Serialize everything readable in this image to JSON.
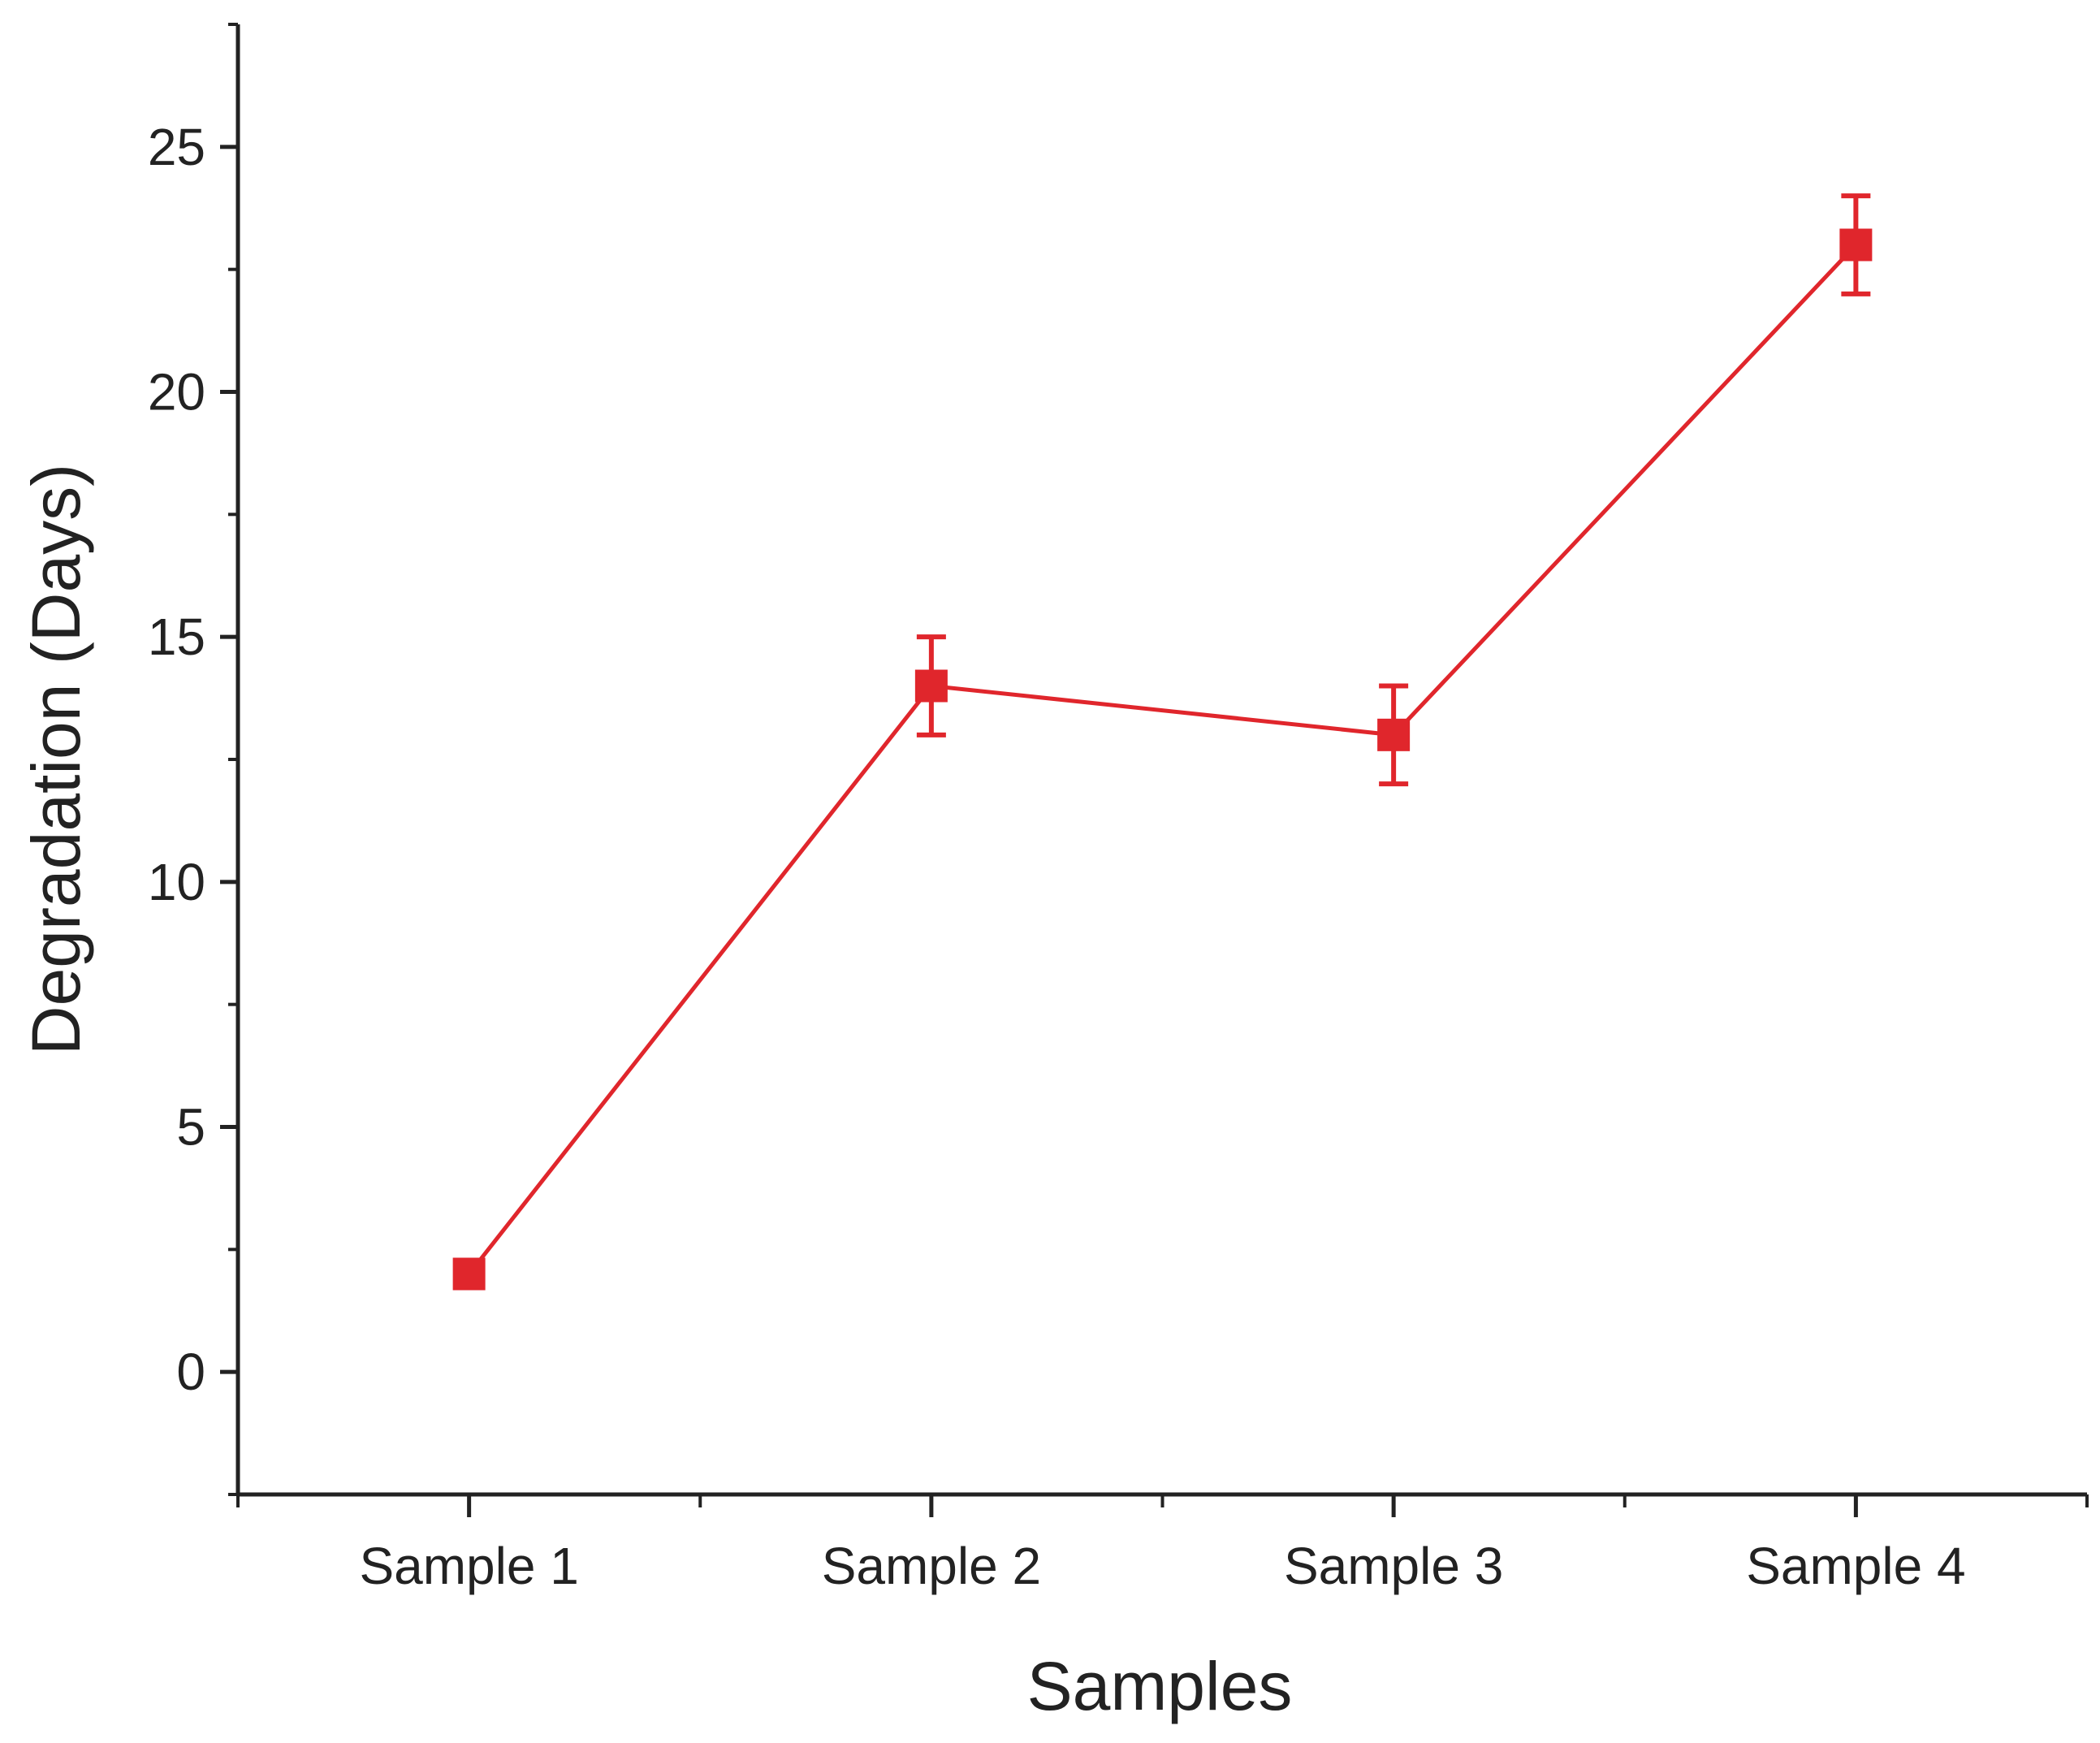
{
  "chart_data": {
    "type": "line",
    "title": "",
    "xlabel": "Samples",
    "ylabel": "Degradation (Days)",
    "categories": [
      "Sample 1",
      "Sample 2",
      "Sample 3",
      "Sample 4"
    ],
    "series": [
      {
        "values": [
          2,
          14,
          13,
          23
        ],
        "errors": [
          0,
          1,
          1,
          1
        ],
        "color": "#e0262c",
        "marker": "square"
      }
    ],
    "ylim": [
      -2.5,
      27.5
    ],
    "yticks": [
      0,
      5,
      10,
      15,
      20,
      25
    ],
    "yticks_minor": [
      -2.5,
      2.5,
      7.5,
      12.5,
      17.5,
      22.5,
      27.5
    ],
    "xlim": [
      0.5,
      4.5
    ],
    "grid": false,
    "legend": "none",
    "colors": {
      "axis": "#222222",
      "series": "#e0262c"
    }
  }
}
